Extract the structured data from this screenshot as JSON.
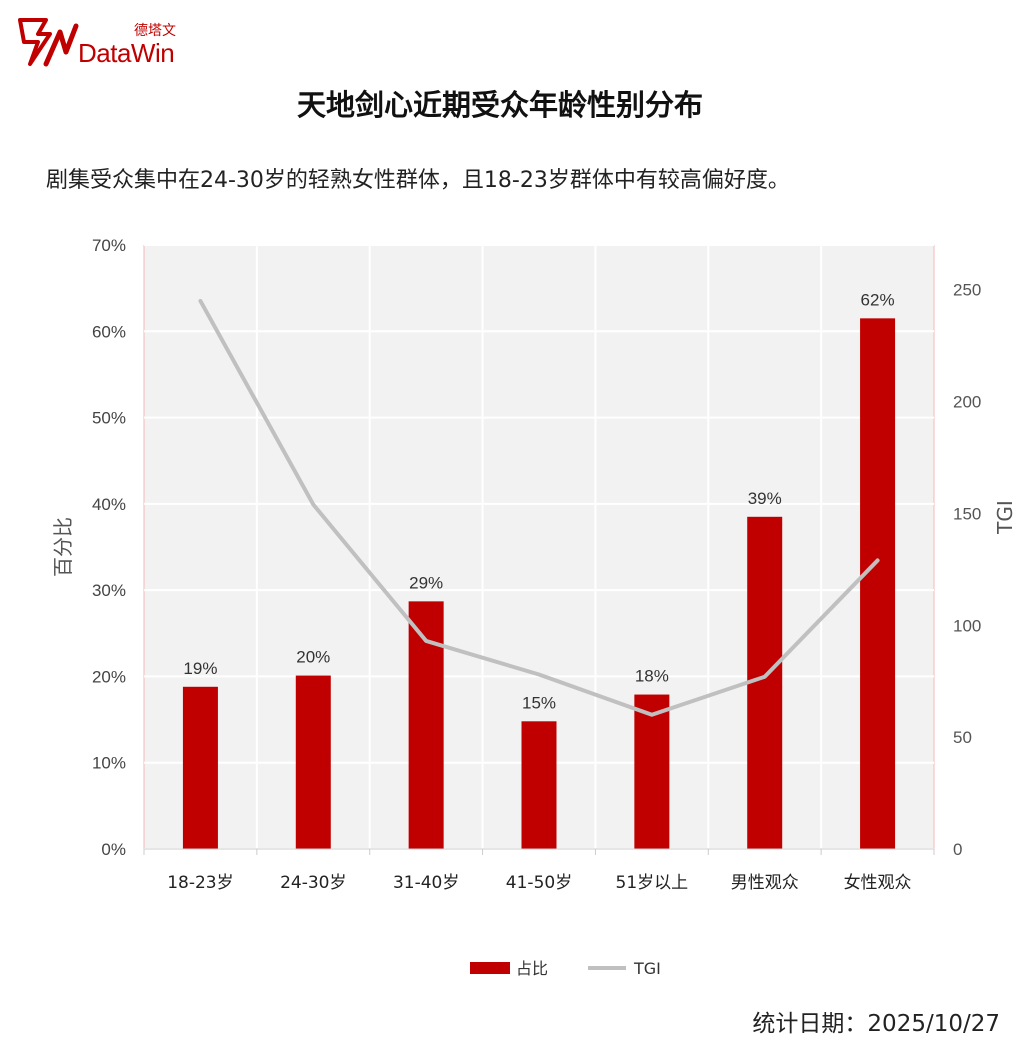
{
  "brand": {
    "name_cn": "德塔文",
    "name_en": "DataWin",
    "color": "#c00000"
  },
  "title": "天地剑心近期受众年龄性别分布",
  "subtitle": "剧集受众集中在24-30岁的轻熟女性群体，且18-23岁群体中有较高偏好度。",
  "footer": {
    "date_label": "统计日期：",
    "date_value": "2025/10/27"
  },
  "chart_data": {
    "type": "bar",
    "categories": [
      "18-23岁",
      "24-30岁",
      "31-40岁",
      "41-50岁",
      "51岁以上",
      "男性观众",
      "女性观众"
    ],
    "series": [
      {
        "name": "占比",
        "type": "bar",
        "axis": "left",
        "color": "#c00000",
        "values": [
          18.8,
          20.1,
          28.7,
          14.8,
          17.9,
          38.5,
          61.5
        ],
        "labels": [
          "19%",
          "20%",
          "29%",
          "15%",
          "18%",
          "39%",
          "62%"
        ]
      },
      {
        "name": "TGI",
        "type": "line",
        "axis": "right",
        "color": "#c0c0c0",
        "values": [
          245,
          154,
          93,
          78,
          60,
          77,
          129
        ]
      }
    ],
    "y_left": {
      "label": "百分比",
      "min": 0,
      "max": 70,
      "ticks": [
        "0%",
        "10%",
        "20%",
        "30%",
        "40%",
        "50%",
        "60%",
        "70%"
      ]
    },
    "y_right": {
      "label": "TGI",
      "min": 0,
      "max": 270,
      "ticks": [
        "0",
        "50",
        "100",
        "150",
        "200",
        "250"
      ],
      "tick_values": [
        0,
        50,
        100,
        150,
        200,
        250
      ]
    },
    "grid": true,
    "plot_background": "#f2f2f2",
    "legend": {
      "position": "bottom",
      "items": [
        "占比",
        "TGI"
      ]
    }
  }
}
